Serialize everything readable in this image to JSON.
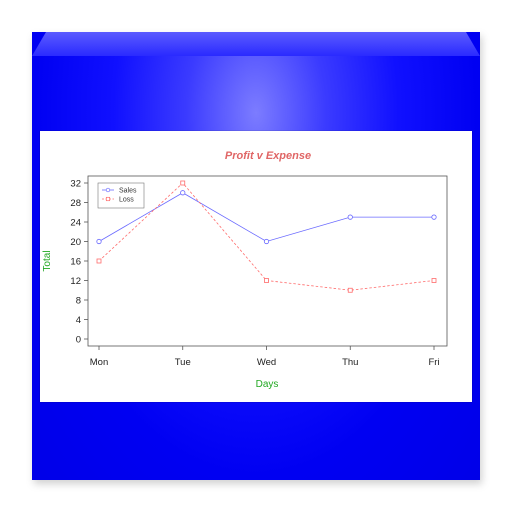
{
  "colors": {
    "title": "#e06666",
    "axis_label": "#22a822",
    "sales": "#6b6bff",
    "loss": "#ff6b6b",
    "box": "#0000f2"
  },
  "chart_data": {
    "type": "line",
    "title": "Profit v Expense",
    "xlabel": "Days",
    "ylabel": "Total",
    "categories": [
      "Mon",
      "Tue",
      "Wed",
      "Thu",
      "Fri"
    ],
    "ylim": [
      0,
      32
    ],
    "yticks": [
      0,
      4,
      8,
      12,
      16,
      20,
      24,
      28,
      32
    ],
    "grid": false,
    "legend_position": "top-left",
    "series": [
      {
        "name": "Sales",
        "values": [
          20,
          30,
          20,
          25,
          25
        ],
        "marker": "circle",
        "line_style": "solid",
        "color": "#6b6bff"
      },
      {
        "name": "Loss",
        "values": [
          16,
          32,
          12,
          10,
          12
        ],
        "marker": "square",
        "line_style": "dashed",
        "color": "#ff6b6b"
      }
    ]
  }
}
